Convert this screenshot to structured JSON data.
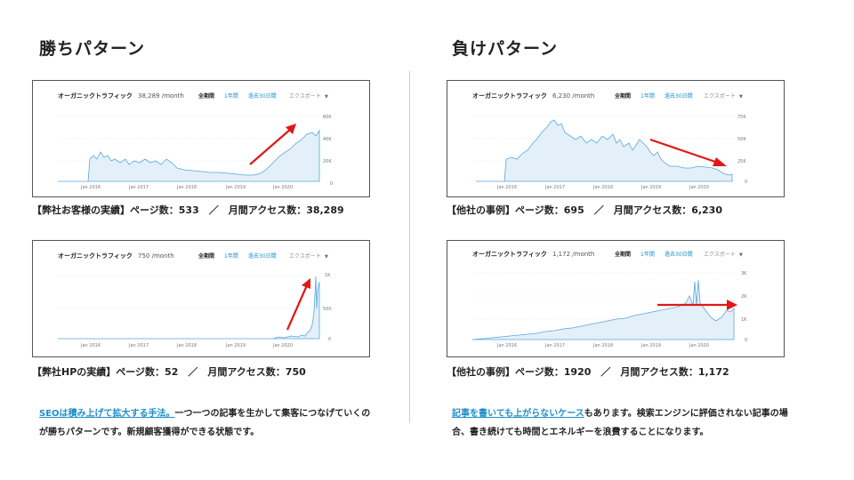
{
  "left": {
    "heading": "勝ちパターン",
    "charts": [
      {
        "title": "オーガニックトラフィック",
        "value": "38,289 /month",
        "tabs": [
          "全期間",
          "1年間",
          "過去30日間"
        ],
        "export": "エクスポート",
        "ticks_y": [
          "60K",
          "40K",
          "20K",
          "0"
        ],
        "ticks_x": [
          "Jan 2016",
          "Jan 2017",
          "Jan 2018",
          "Jan 2019",
          "Jan 2020"
        ],
        "arrow_color": "#e01818",
        "caption": "【弊社お客様の実績】ページ数：533　／　月間アクセス数：38,289"
      },
      {
        "title": "オーガニックトラフィック",
        "value": "750 /month",
        "tabs": [
          "全期間",
          "1年間",
          "過去30日間"
        ],
        "export": "エクスポート",
        "ticks_y": [
          "1K",
          "500",
          "0"
        ],
        "ticks_x": [
          "Jan 2016",
          "Jan 2017",
          "Jan 2018",
          "Jan 2019",
          "Jan 2020"
        ],
        "arrow_color": "#e01818",
        "caption": "【弊社HPの実績】ページ数：52　／　月間アクセス数：750"
      }
    ],
    "desc_link": "SEOは積み上げて拡大する手法。",
    "desc_text": "一つ一つの記事を生かして集客につなげていくのが勝ちパターンです。新規顧客獲得ができる状態です。"
  },
  "right": {
    "heading": "負けパターン",
    "charts": [
      {
        "title": "オーガニックトラフィック",
        "value": "6,230 /month",
        "tabs": [
          "全期間",
          "1年間",
          "過去30日間"
        ],
        "export": "エクスポート",
        "ticks_y": [
          "75K",
          "50K",
          "25K",
          "0"
        ],
        "ticks_x": [
          "Jan 2016",
          "Jan 2017",
          "Jan 2018",
          "Jan 2019",
          "Jan 2020"
        ],
        "arrow_color": "#e01818",
        "caption": "【他社の事例】ページ数：695　／　月間アクセス数：6,230"
      },
      {
        "title": "オーガニックトラフィック",
        "value": "1,172 /month",
        "tabs": [
          "全期間",
          "1年間",
          "過去30日間"
        ],
        "export": "エクスポート",
        "ticks_y": [
          "3K",
          "2K",
          "1K",
          "0"
        ],
        "ticks_x": [
          "Jan 2016",
          "Jan 2017",
          "Jan 2018",
          "Jan 2019",
          "Jan 2020"
        ],
        "arrow_color": "#e01818",
        "caption": "【他社の事例】ページ数：1920　／　月間アクセス数：1,172"
      }
    ],
    "desc_link": "記事を書いても上がらないケース",
    "desc_text": "もあります。検索エンジンに評価されない記事の場合、書き続けても時間とエネルギーを浪費することになります。"
  },
  "colors": {
    "line": "#5aa7dc",
    "fill": "#e3f0fa",
    "link": "#1e8fc8",
    "export": "#888888",
    "tab_active": "#222222"
  }
}
